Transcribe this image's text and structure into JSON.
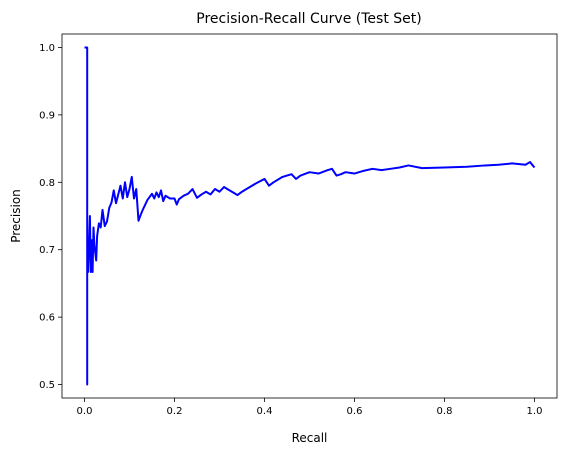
{
  "chart_data": {
    "type": "line",
    "title": "Precision-Recall Curve (Test Set)",
    "xlabel": "Recall",
    "ylabel": "Precision",
    "xlim": [
      -0.05,
      1.05
    ],
    "ylim": [
      0.48,
      1.02
    ],
    "xticks": [
      0.0,
      0.2,
      0.4,
      0.6,
      0.8,
      1.0
    ],
    "xtick_labels": [
      "0.0",
      "0.2",
      "0.4",
      "0.6",
      "0.8",
      "1.0"
    ],
    "yticks": [
      0.5,
      0.6,
      0.7,
      0.8,
      0.9,
      1.0
    ],
    "ytick_labels": [
      "0.5",
      "0.6",
      "0.7",
      "0.8",
      "0.9",
      "1.0"
    ],
    "grid": false,
    "series": [
      {
        "color": "#0000ff",
        "x": [
          0.0,
          0.006,
          0.006,
          0.006,
          0.008,
          0.012,
          0.014,
          0.016,
          0.018,
          0.02,
          0.022,
          0.026,
          0.028,
          0.032,
          0.036,
          0.04,
          0.045,
          0.05,
          0.055,
          0.06,
          0.065,
          0.07,
          0.075,
          0.08,
          0.085,
          0.09,
          0.095,
          0.1,
          0.105,
          0.11,
          0.115,
          0.12,
          0.125,
          0.13,
          0.14,
          0.15,
          0.155,
          0.16,
          0.165,
          0.17,
          0.175,
          0.18,
          0.19,
          0.2,
          0.205,
          0.21,
          0.22,
          0.23,
          0.24,
          0.25,
          0.26,
          0.27,
          0.28,
          0.29,
          0.3,
          0.31,
          0.32,
          0.33,
          0.34,
          0.35,
          0.36,
          0.38,
          0.4,
          0.41,
          0.42,
          0.44,
          0.46,
          0.47,
          0.48,
          0.5,
          0.52,
          0.54,
          0.55,
          0.56,
          0.57,
          0.58,
          0.6,
          0.62,
          0.64,
          0.66,
          0.68,
          0.7,
          0.72,
          0.75,
          0.8,
          0.85,
          0.89,
          0.92,
          0.95,
          0.98,
          0.99,
          1.0
        ],
        "y": [
          1.0,
          1.0,
          0.5,
          0.667,
          0.667,
          0.75,
          0.667,
          0.714,
          0.667,
          0.733,
          0.706,
          0.684,
          0.72,
          0.739,
          0.733,
          0.759,
          0.735,
          0.742,
          0.762,
          0.77,
          0.788,
          0.769,
          0.782,
          0.795,
          0.776,
          0.8,
          0.778,
          0.79,
          0.808,
          0.776,
          0.79,
          0.743,
          0.752,
          0.76,
          0.774,
          0.783,
          0.776,
          0.785,
          0.778,
          0.788,
          0.772,
          0.78,
          0.776,
          0.776,
          0.767,
          0.775,
          0.78,
          0.783,
          0.79,
          0.777,
          0.782,
          0.786,
          0.782,
          0.79,
          0.786,
          0.793,
          0.789,
          0.785,
          0.781,
          0.786,
          0.79,
          0.798,
          0.805,
          0.795,
          0.8,
          0.808,
          0.812,
          0.805,
          0.81,
          0.815,
          0.813,
          0.818,
          0.82,
          0.81,
          0.812,
          0.815,
          0.813,
          0.817,
          0.82,
          0.818,
          0.82,
          0.822,
          0.825,
          0.821,
          0.822,
          0.823,
          0.825,
          0.826,
          0.828,
          0.826,
          0.83,
          0.822
        ]
      }
    ]
  }
}
